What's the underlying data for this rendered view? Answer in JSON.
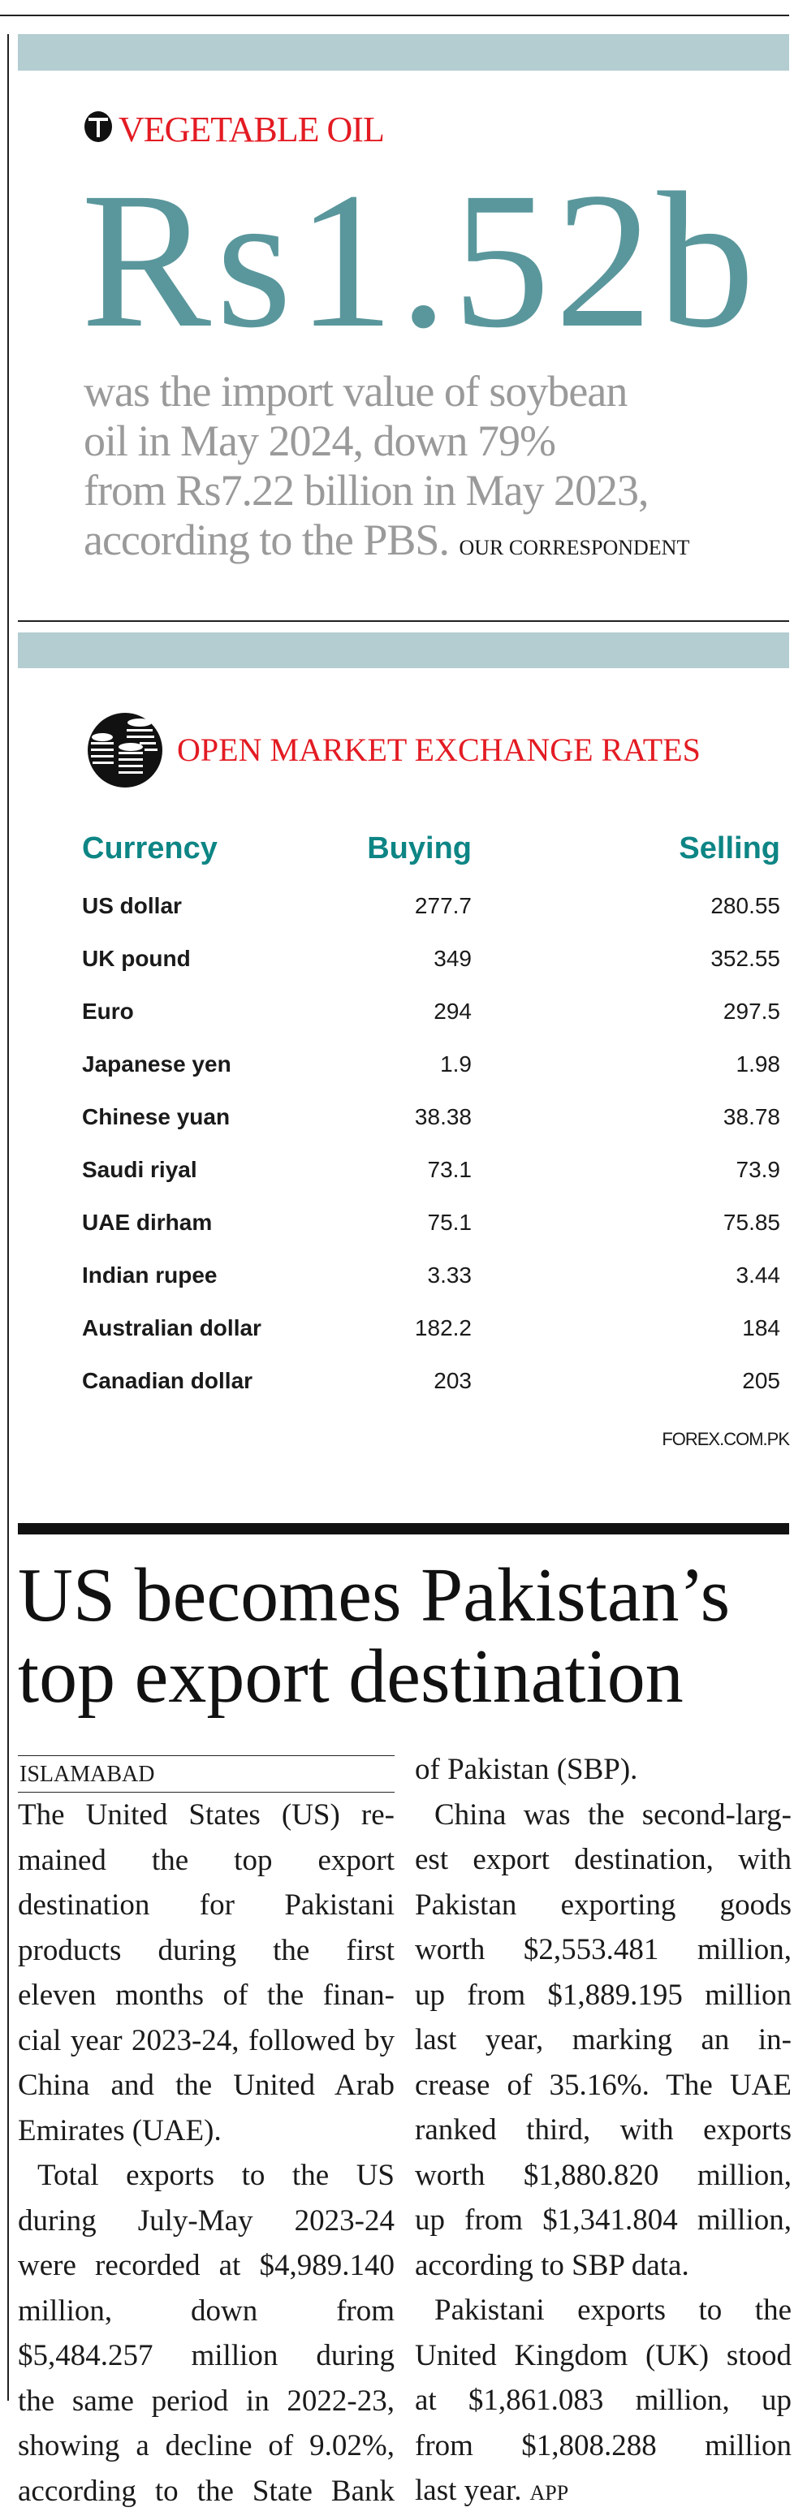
{
  "vegetable_oil": {
    "section_label": "VEGETABLE OIL",
    "logo_letter": "T",
    "headline_figure": "Rs1.52b",
    "body_lines": [
      "was the import value of soybean",
      "oil in May 2024, down 79%",
      "from Rs7.22 billion in May 2023,",
      "according to the PBS."
    ],
    "byline": "OUR CORRESPONDENT"
  },
  "exchange_rates": {
    "title": "OPEN MARKET EXCHANGE RATES",
    "icon": "coins-icon",
    "columns": [
      "Currency",
      "Buying",
      "Selling"
    ],
    "rows": [
      {
        "currency": "US dollar",
        "buying": "277.7",
        "selling": "280.55"
      },
      {
        "currency": "UK pound",
        "buying": "349",
        "selling": "352.55"
      },
      {
        "currency": "Euro",
        "buying": "294",
        "selling": "297.5"
      },
      {
        "currency": "Japanese yen",
        "buying": "1.9",
        "selling": "1.98"
      },
      {
        "currency": "Chinese yuan",
        "buying": "38.38",
        "selling": "38.78"
      },
      {
        "currency": "Saudi riyal",
        "buying": "73.1",
        "selling": "73.9"
      },
      {
        "currency": "UAE dirham",
        "buying": "75.1",
        "selling": "75.85"
      },
      {
        "currency": "Indian rupee",
        "buying": "3.33",
        "selling": "3.44"
      },
      {
        "currency": "Australian dollar",
        "buying": "182.2",
        "selling": "184"
      },
      {
        "currency": "Canadian dollar",
        "buying": "203",
        "selling": "205"
      }
    ],
    "source": "FOREX.COM.PK"
  },
  "article": {
    "headline_lines": [
      "US becomes Pakistan’s",
      "top export destination"
    ],
    "dateline": "ISLAMABAD",
    "left_column": [
      {
        "t": "The United States (US) re-"
      },
      {
        "t": "mained the top export"
      },
      {
        "t": "destination for Pakistani"
      },
      {
        "t": "products during the first"
      },
      {
        "t": "eleven months of the finan-"
      },
      {
        "t": "cial year 2023-24, followed by"
      },
      {
        "t": "China and the United Arab"
      },
      {
        "t": "Emirates (UAE).",
        "last": true
      },
      {
        "t": "Total exports to the US",
        "indent": true
      },
      {
        "t": "during July-May 2023-24"
      },
      {
        "t": "were recorded at $4,989.140"
      },
      {
        "t": "million, down from"
      },
      {
        "t": "$5,484.257 million during"
      },
      {
        "t": "the same period in 2022-23,"
      },
      {
        "t": "showing a decline of 9.02%,"
      },
      {
        "t": "according to the State Bank"
      }
    ],
    "right_column": [
      {
        "t": "of Pakistan (SBP).",
        "last": true
      },
      {
        "t": "China was the second-larg-",
        "indent": true
      },
      {
        "t": "est export destination, with"
      },
      {
        "t": "Pakistan exporting goods"
      },
      {
        "t": "worth $2,553.481 million,"
      },
      {
        "t": "up from $1,889.195 million"
      },
      {
        "t": "last year, marking an in-"
      },
      {
        "t": "crease of 35.16%. The UAE"
      },
      {
        "t": "ranked third, with exports"
      },
      {
        "t": "worth $1,880.820 million,"
      },
      {
        "t": "up from $1,341.804 million,"
      },
      {
        "t": "according to SBP data.",
        "last": true
      },
      {
        "t": "Pakistani exports to the",
        "indent": true
      },
      {
        "t": "United Kingdom (UK) stood"
      },
      {
        "t": "at $1,861.083 million, up"
      },
      {
        "t": "from $1,808.288 million"
      },
      {
        "t": "last year.",
        "last": true
      }
    ],
    "agency": "APP"
  },
  "colors": {
    "band": "#b3cdd1",
    "red": "#e31b23",
    "figure_teal": "#5a979c",
    "header_teal": "#0e8585",
    "gray_text": "#9a9a9a"
  }
}
